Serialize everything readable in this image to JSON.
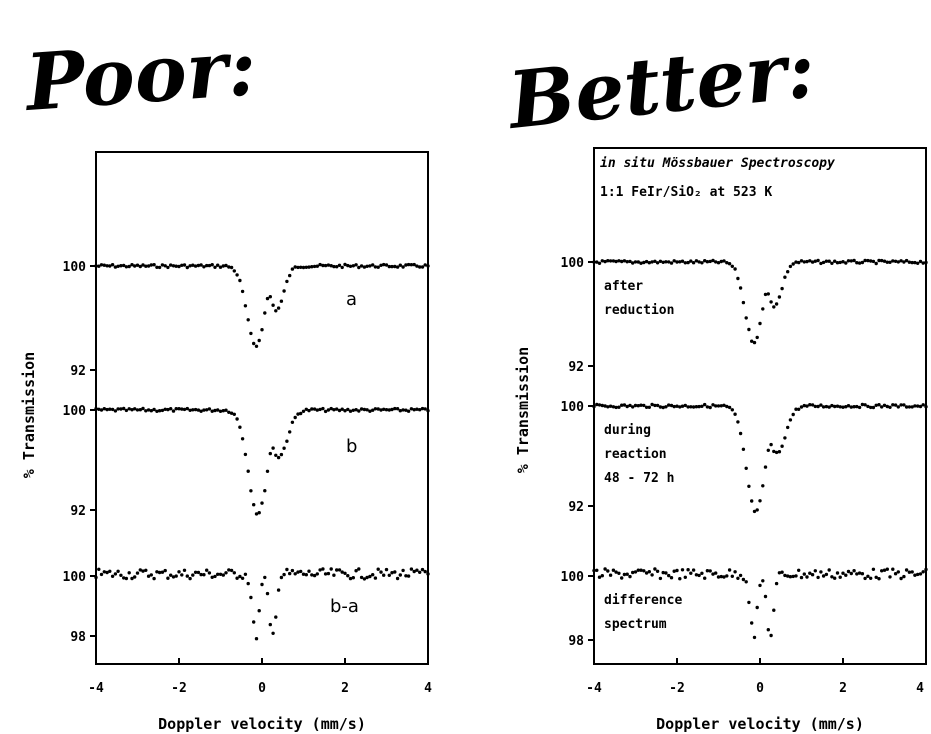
{
  "headings": {
    "left": "Poor:",
    "right": "Better:"
  },
  "chart_data": [
    {
      "type": "scatter",
      "panel": "poor",
      "title": "",
      "xlabel": "Doppler velocity (mm/s)",
      "ylabel": "% Transmission",
      "xlim": [
        -4,
        4
      ],
      "x_ticks": [
        "-4",
        "-2",
        "0",
        "2",
        "4"
      ],
      "legend": "none",
      "traces": [
        {
          "label": "a",
          "y_ticks": [
            100,
            92
          ],
          "baseline": 100,
          "min": 92,
          "dips": [
            {
              "center": -0.15,
              "depth": 1.0,
              "width": 0.3
            },
            {
              "center": 0.35,
              "depth": 0.55,
              "width": 0.25
            }
          ]
        },
        {
          "label": "b",
          "y_ticks": [
            100,
            92
          ],
          "baseline": 100,
          "min": 92,
          "dips": [
            {
              "center": -0.1,
              "depth": 1.0,
              "width": 0.32
            },
            {
              "center": 0.4,
              "depth": 0.45,
              "width": 0.3
            }
          ]
        },
        {
          "label": "b-a",
          "y_ticks": [
            100,
            98
          ],
          "baseline": 100,
          "min": 98,
          "dips": [
            {
              "center": -0.15,
              "depth": 1.0,
              "width": 0.12
            },
            {
              "center": 0.25,
              "depth": 1.0,
              "width": 0.12
            }
          ]
        }
      ]
    },
    {
      "type": "scatter",
      "panel": "better",
      "title_lines": [
        "in situ Mössbauer Spectroscopy",
        "1:1 FeIr/SiO₂ at 523 K"
      ],
      "xlabel": "Doppler velocity (mm/s)",
      "ylabel": "% Transmission",
      "xlim": [
        -4,
        4
      ],
      "x_ticks": [
        "-4",
        "-2",
        "0",
        "2",
        "4"
      ],
      "legend": "none",
      "traces": [
        {
          "label_lines": [
            "after",
            "reduction"
          ],
          "y_ticks": [
            100,
            92
          ],
          "baseline": 100,
          "min": 92,
          "dips": [
            {
              "center": -0.15,
              "depth": 1.0,
              "width": 0.3
            },
            {
              "center": 0.35,
              "depth": 0.55,
              "width": 0.25
            }
          ]
        },
        {
          "label_lines": [
            "during",
            "reaction",
            "48 - 72 h"
          ],
          "y_ticks": [
            100,
            92
          ],
          "baseline": 100,
          "min": 92,
          "dips": [
            {
              "center": -0.1,
              "depth": 1.0,
              "width": 0.32
            },
            {
              "center": 0.4,
              "depth": 0.45,
              "width": 0.3
            }
          ]
        },
        {
          "label_lines": [
            "difference",
            "spectrum"
          ],
          "y_ticks": [
            100,
            98
          ],
          "baseline": 100,
          "min": 98,
          "dips": [
            {
              "center": -0.15,
              "depth": 1.0,
              "width": 0.12
            },
            {
              "center": 0.25,
              "depth": 1.0,
              "width": 0.12
            }
          ]
        }
      ]
    }
  ]
}
